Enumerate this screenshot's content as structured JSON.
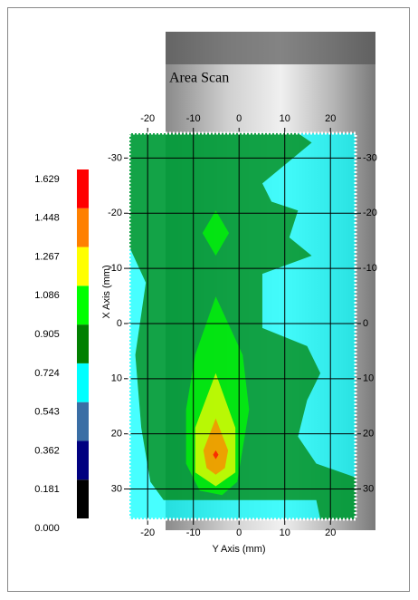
{
  "chart_data": {
    "type": "contour",
    "title": "Area Scan",
    "x_label": "Y Axis (mm)",
    "y_label": "X Axis (mm)",
    "xlim": [
      -24,
      25.5
    ],
    "xticks": [
      -20,
      -10,
      0,
      10,
      20
    ],
    "ylim": [
      -34.5,
      35.5
    ],
    "yticks": [
      -30,
      -20,
      -10,
      0,
      10,
      20,
      30
    ],
    "grid": true,
    "levels": [
      {
        "value": 0,
        "label": "0.000"
      },
      0.181,
      0.362,
      0.543,
      0.724,
      0.905,
      1.086,
      1.267,
      1.448,
      1.629
    ],
    "colors": [
      "#000000",
      "#000080",
      "#3a6ea5",
      "#00ffff",
      "#008000",
      "#00ff00",
      "#ffff00",
      "#ff8000",
      "#ff0000"
    ],
    "contours": [
      {
        "level": 0.543,
        "polygon": [
          [
            -24,
            -34.5
          ],
          [
            25.5,
            -34.5
          ],
          [
            25.5,
            35.5
          ],
          [
            -24,
            35.5
          ]
        ]
      },
      {
        "level": 0.724,
        "polygon": [
          [
            -24,
            -34.5
          ],
          [
            12.9,
            -34.5
          ],
          [
            15.9,
            -32.8
          ],
          [
            5.1,
            -25.4
          ],
          [
            7.1,
            -22.1
          ],
          [
            12.9,
            -20.5
          ],
          [
            11.0,
            -15.6
          ],
          [
            15.9,
            -12.3
          ],
          [
            5.1,
            -9.0
          ],
          [
            5.1,
            0.8
          ],
          [
            14.9,
            4.1
          ],
          [
            17.8,
            9.0
          ],
          [
            14.9,
            13.9
          ],
          [
            12.9,
            20.5
          ],
          [
            16.9,
            25.4
          ],
          [
            25.5,
            27.9
          ],
          [
            25.5,
            35.5
          ],
          [
            17.8,
            35.5
          ],
          [
            16.9,
            32
          ],
          [
            -16.5,
            32
          ],
          [
            -19.4,
            28.7
          ],
          [
            -21.4,
            18.9
          ],
          [
            -22.7,
            5.7
          ],
          [
            -20.4,
            -7.4
          ],
          [
            -24,
            -13.9
          ]
        ]
      },
      {
        "level": 0.905,
        "polygon": [
          [
            -5.1,
            -20.5
          ],
          [
            -2.2,
            -16.4
          ],
          [
            -5.1,
            -12.3
          ],
          [
            -8.0,
            -16.4
          ]
        ]
      },
      {
        "level": 0.905,
        "polygon": [
          [
            -5.1,
            -4.9
          ],
          [
            0.8,
            5.7
          ],
          [
            2.2,
            15.6
          ],
          [
            -0.4,
            28.7
          ],
          [
            -3.7,
            31.1
          ],
          [
            -8.6,
            30.3
          ],
          [
            -11.6,
            25.4
          ],
          [
            -11.6,
            15.6
          ],
          [
            -9.6,
            5.7
          ]
        ]
      },
      {
        "level": 1.086,
        "polygon": [
          [
            -5.1,
            9.0
          ],
          [
            -0.8,
            18.9
          ],
          [
            -0.8,
            27.0
          ],
          [
            -5.1,
            29.5
          ],
          [
            -9.6,
            27.0
          ],
          [
            -9.6,
            18.9
          ]
        ]
      },
      {
        "level": 1.267,
        "polygon": [
          [
            -5.1,
            17.2
          ],
          [
            -2.4,
            23.0
          ],
          [
            -3.1,
            26.2
          ],
          [
            -5.1,
            27.4
          ],
          [
            -7.1,
            26.2
          ],
          [
            -7.8,
            23.0
          ]
        ]
      },
      {
        "level": 1.448,
        "polygon": [
          [
            -5.1,
            23.0
          ],
          [
            -4.5,
            23.8
          ],
          [
            -5.1,
            24.6
          ],
          [
            -5.7,
            23.8
          ]
        ]
      }
    ]
  }
}
